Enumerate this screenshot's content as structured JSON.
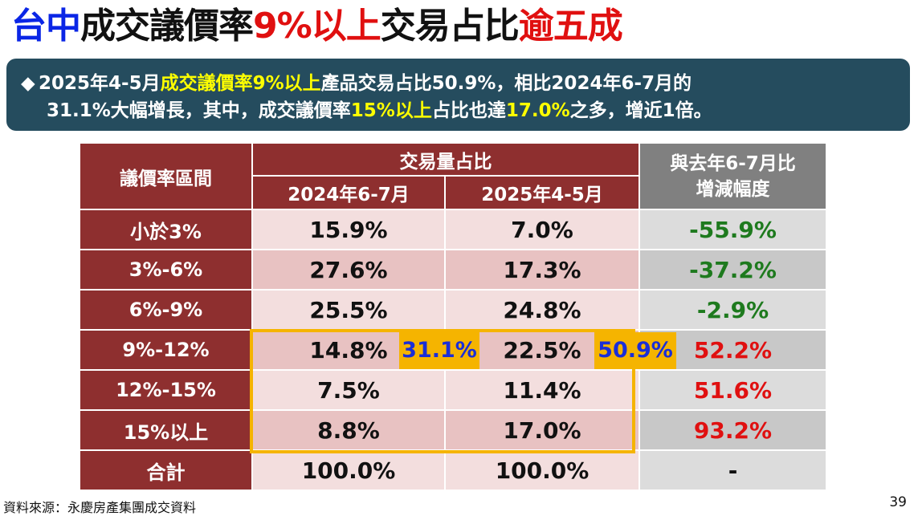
{
  "title": {
    "part1": "台中",
    "part2": "成交議價率",
    "part3": "9%以上",
    "part4": "交易占比",
    "part5": "逾五成"
  },
  "summary": {
    "bullet": "◆",
    "seg1": "2025年4-5月",
    "seg2": "成交議價率9%以上",
    "seg3": "產品交易占比50.9%，相比2024年6-7月的",
    "seg4": "31.1%大幅增長，其中，成交議價率",
    "seg5": "15%以上",
    "seg6": "占比也達",
    "seg7": "17.0%",
    "seg8": "之多，增近1倍。"
  },
  "table": {
    "header_range": "議價率區間",
    "header_share": "交易量占比",
    "header_y2024": "2024年6-7月",
    "header_y2025": "2025年4-5月",
    "header_change_l1": "與去年6-7月比",
    "header_change_l2": "增減幅度",
    "rows": [
      {
        "label": "小於3%",
        "v2024": "15.9%",
        "v2025": "7.0%",
        "change": "-55.9%"
      },
      {
        "label": "3%-6%",
        "v2024": "27.6%",
        "v2025": "17.3%",
        "change": "-37.2%"
      },
      {
        "label": "6%-9%",
        "v2024": "25.5%",
        "v2025": "24.8%",
        "change": "-2.9%"
      },
      {
        "label": "9%-12%",
        "v2024": "14.8%",
        "v2025": "22.5%",
        "change": "52.2%"
      },
      {
        "label": "12%-15%",
        "v2024": "7.5%",
        "v2025": "11.4%",
        "change": "51.6%"
      },
      {
        "label": "15%以上",
        "v2024": "8.8%",
        "v2025": "17.0%",
        "change": "93.2%"
      },
      {
        "label": "合計",
        "v2024": "100.0%",
        "v2025": "100.0%",
        "change": "-"
      }
    ]
  },
  "tags": {
    "sum2024": "31.1%",
    "sum2025": "50.9%"
  },
  "colors": {
    "title_blue": "#0a26e6",
    "title_red": "#e01010",
    "summary_bg": "#254c5e",
    "summary_highlight": "#ffff00",
    "header_red": "#8e2f2f",
    "header_gray": "#808080",
    "highlight_gold": "#f5b400",
    "negative_green": "#1e7a1e",
    "positive_red": "#e01010"
  },
  "footer": {
    "source": "資料來源：永慶房產集團成交資料",
    "page": "39"
  }
}
